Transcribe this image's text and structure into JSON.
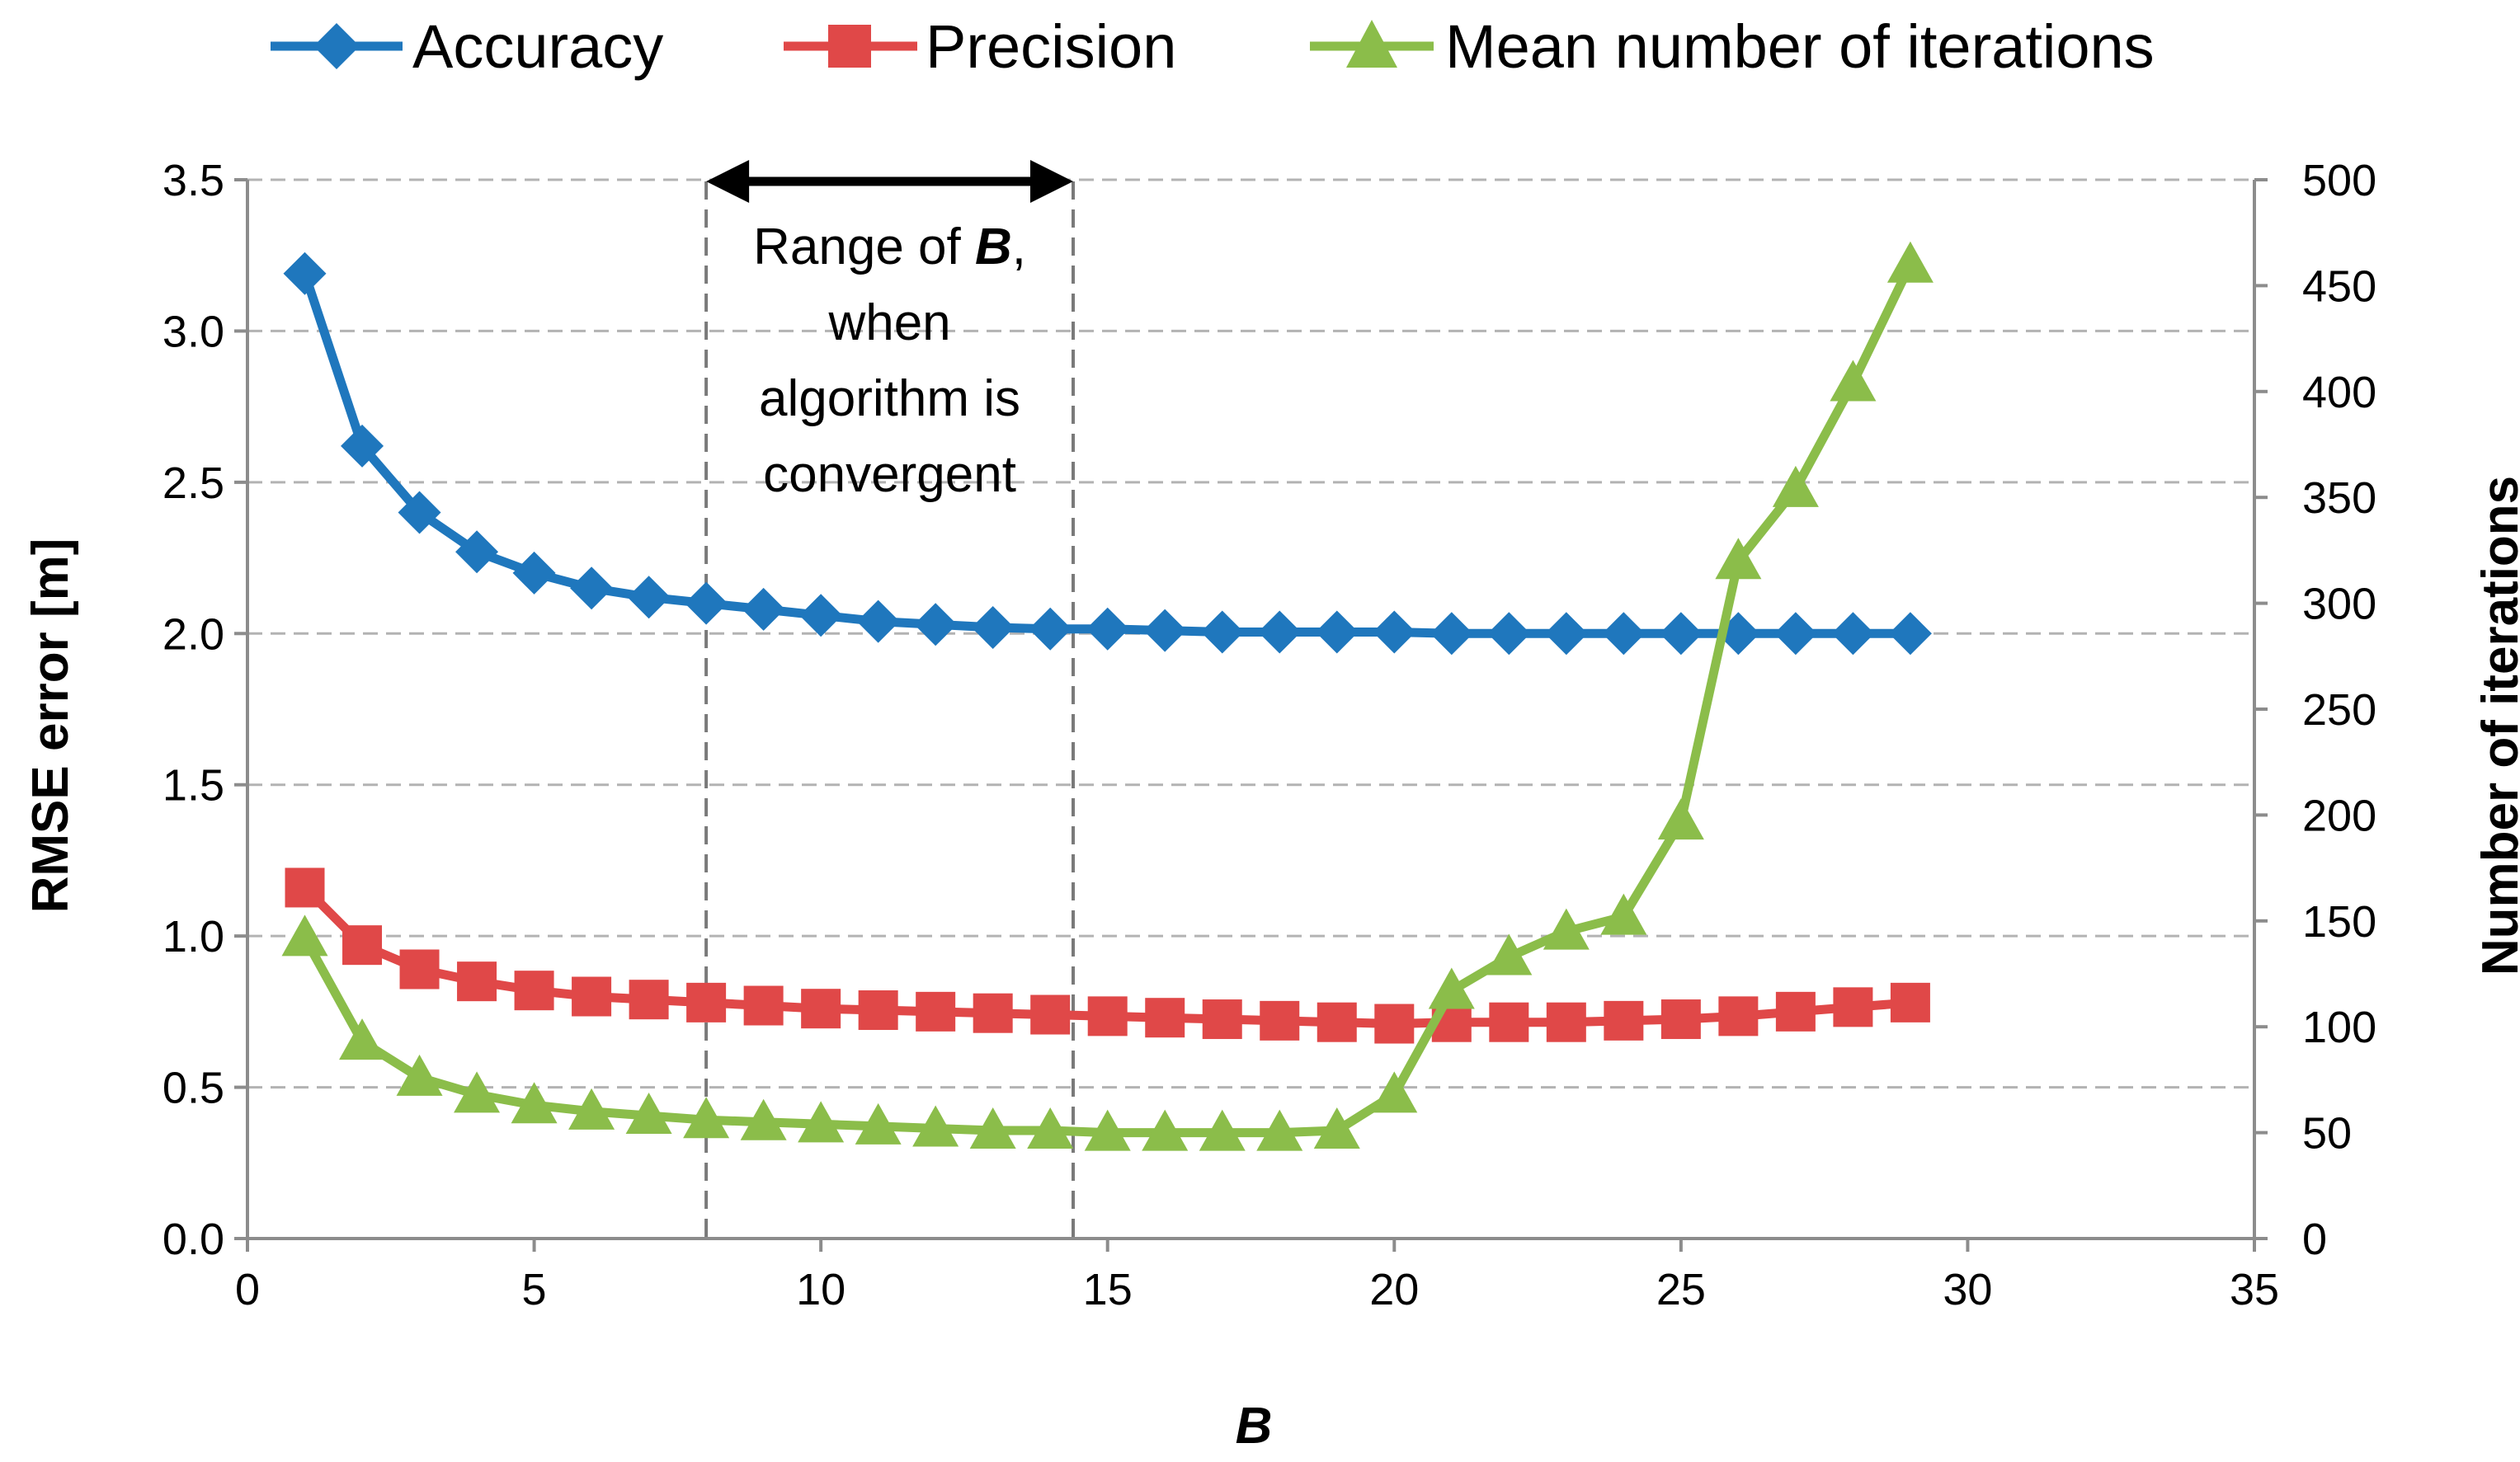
{
  "chart_data": {
    "type": "line",
    "title": "",
    "xlabel": "B",
    "ylabel": "RMSE error [m]",
    "y2label": "Number of iterations",
    "xlim": [
      0,
      35
    ],
    "ylim": [
      0,
      3.5
    ],
    "y2lim": [
      0,
      500
    ],
    "xticks": [
      0,
      5,
      10,
      15,
      20,
      25,
      30,
      35
    ],
    "xtick_labels": [
      "0",
      "5",
      "10",
      "15",
      "20",
      "25",
      "30",
      "35"
    ],
    "yticks": [
      0,
      0.5,
      1.0,
      1.5,
      2.0,
      2.5,
      3.0,
      3.5
    ],
    "ytick_labels": [
      "0.0",
      "0.5",
      "1.0",
      "1.5",
      "2.0",
      "2.5",
      "3.0",
      "3.5"
    ],
    "y2ticks": [
      0,
      50,
      100,
      150,
      200,
      250,
      300,
      350,
      400,
      450,
      500
    ],
    "y2tick_labels": [
      "0",
      "50",
      "100",
      "150",
      "200",
      "250",
      "300",
      "350",
      "400",
      "450",
      "500"
    ],
    "grid": "horizontal dashed",
    "legend_position": "top",
    "x": [
      1,
      2,
      3,
      4,
      5,
      6,
      7,
      8,
      9,
      10,
      11,
      12,
      13,
      14,
      15,
      16,
      17,
      18,
      19,
      20,
      21,
      22,
      23,
      24,
      25,
      26,
      27,
      28,
      29
    ],
    "series": [
      {
        "name": "Accuracy",
        "axis": "left",
        "color": "#1f77bd",
        "marker": "diamond",
        "values": [
          3.19,
          2.62,
          2.4,
          2.27,
          2.2,
          2.15,
          2.12,
          2.1,
          2.08,
          2.06,
          2.04,
          2.03,
          2.02,
          2.015,
          2.015,
          2.01,
          2.005,
          2.005,
          2.005,
          2.005,
          2.0,
          2.0,
          2.0,
          2.0,
          2.0,
          2.0,
          2.0,
          2.0,
          2.0
        ]
      },
      {
        "name": "Precision",
        "axis": "left",
        "color": "#e04848",
        "marker": "square",
        "values": [
          1.16,
          0.97,
          0.89,
          0.85,
          0.82,
          0.8,
          0.79,
          0.78,
          0.77,
          0.76,
          0.755,
          0.75,
          0.745,
          0.74,
          0.735,
          0.73,
          0.725,
          0.72,
          0.715,
          0.71,
          0.715,
          0.715,
          0.715,
          0.72,
          0.725,
          0.735,
          0.75,
          0.765,
          0.78
        ]
      },
      {
        "name": "Mean number of iterations",
        "axis": "right",
        "color": "#8bbd4a",
        "marker": "triangle",
        "values": [
          142,
          93,
          76,
          68,
          63,
          60,
          58,
          56,
          55,
          54,
          53,
          52,
          51,
          51,
          50,
          50,
          50,
          50,
          51,
          68,
          117,
          133,
          145,
          152,
          197,
          320,
          354,
          404,
          460
        ]
      }
    ],
    "annotations": [
      {
        "type": "range_bracket",
        "x_start": 8,
        "x_end": 14.4,
        "text_lines": [
          [
            "Range of ",
            "B",
            ","
          ],
          [
            "when"
          ],
          [
            "algorithm is"
          ],
          [
            "convergent"
          ]
        ]
      }
    ]
  },
  "legend": {
    "items": [
      {
        "label": "Accuracy",
        "color": "#1f77bd",
        "marker": "diamond"
      },
      {
        "label": "Precision",
        "color": "#e04848",
        "marker": "square"
      },
      {
        "label": "Mean number of iterations",
        "color": "#8bbd4a",
        "marker": "triangle"
      }
    ]
  },
  "colors": {
    "axis": "#8c8c8c",
    "grid": "#b3b3b3",
    "annotation_line": "#7a7a7a",
    "arrow": "#000000"
  }
}
